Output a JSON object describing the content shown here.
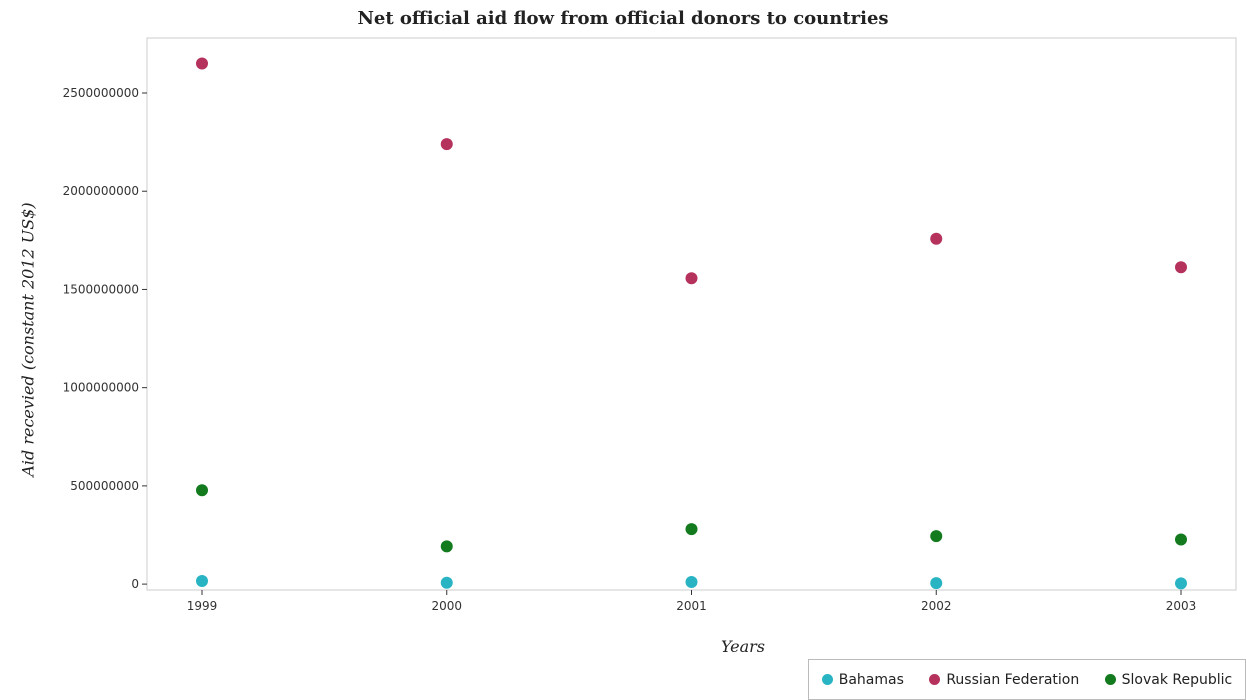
{
  "title": "Net official aid flow from official donors to countries",
  "xlabel": "Years",
  "ylabel": "Aid recevied (constant 2012 US$)",
  "chart_data": {
    "type": "scatter",
    "categories": [
      "1999",
      "2000",
      "2001",
      "2002",
      "2003"
    ],
    "y_ticks": [
      "0",
      "500000000",
      "1000000000",
      "1500000000",
      "2000000000",
      "2500000000"
    ],
    "ylim": [
      -30000000,
      2780000000
    ],
    "grid": false,
    "legend_position": "bottom-right",
    "series": [
      {
        "name": "Bahamas",
        "color": "#29b4c4",
        "values": [
          16000000,
          7000000,
          11000000,
          5000000,
          4000000
        ]
      },
      {
        "name": "Russian Federation",
        "color": "#b5325c",
        "values": [
          2650000000,
          2240000000,
          1557000000,
          1758000000,
          1613000000
        ]
      },
      {
        "name": "Slovak Republic",
        "color": "#137a1e",
        "values": [
          478000000,
          192000000,
          280000000,
          244000000,
          227000000
        ]
      }
    ]
  }
}
